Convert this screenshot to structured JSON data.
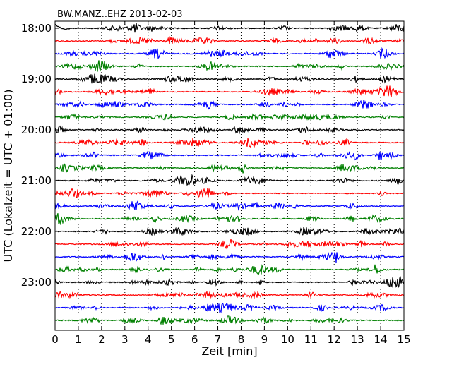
{
  "chart_data": {
    "type": "line",
    "title": "BW.MANZ..EHZ 2013-02-03",
    "xlabel": "Zeit  [min]",
    "ylabel": "UTC (Lokalzeit = UTC + 01:00)",
    "xlim": [
      0,
      15
    ],
    "x_ticks": [
      "0",
      "1",
      "2",
      "3",
      "4",
      "5",
      "6",
      "7",
      "8",
      "9",
      "10",
      "11",
      "12",
      "13",
      "14",
      "15"
    ],
    "y_tick_labels": [
      "18:00",
      "19:00",
      "20:00",
      "21:00",
      "22:00",
      "23:00"
    ],
    "minutes_per_line": 15,
    "trace_colors": [
      "#000000",
      "#ff0000",
      "#0000ff",
      "#008000"
    ],
    "traces": [
      {
        "start": "18:00"
      },
      {
        "start": "18:15"
      },
      {
        "start": "18:30"
      },
      {
        "start": "18:45"
      },
      {
        "start": "19:00"
      },
      {
        "start": "19:15"
      },
      {
        "start": "19:30"
      },
      {
        "start": "19:45"
      },
      {
        "start": "20:00"
      },
      {
        "start": "20:15"
      },
      {
        "start": "20:30"
      },
      {
        "start": "20:45"
      },
      {
        "start": "21:00"
      },
      {
        "start": "21:15"
      },
      {
        "start": "21:30"
      },
      {
        "start": "21:45"
      },
      {
        "start": "22:00"
      },
      {
        "start": "22:15"
      },
      {
        "start": "22:30"
      },
      {
        "start": "22:45"
      },
      {
        "start": "23:00"
      },
      {
        "start": "23:15"
      },
      {
        "start": "23:30"
      },
      {
        "start": "23:45"
      }
    ],
    "grid": "vertical dotted at each minute"
  }
}
